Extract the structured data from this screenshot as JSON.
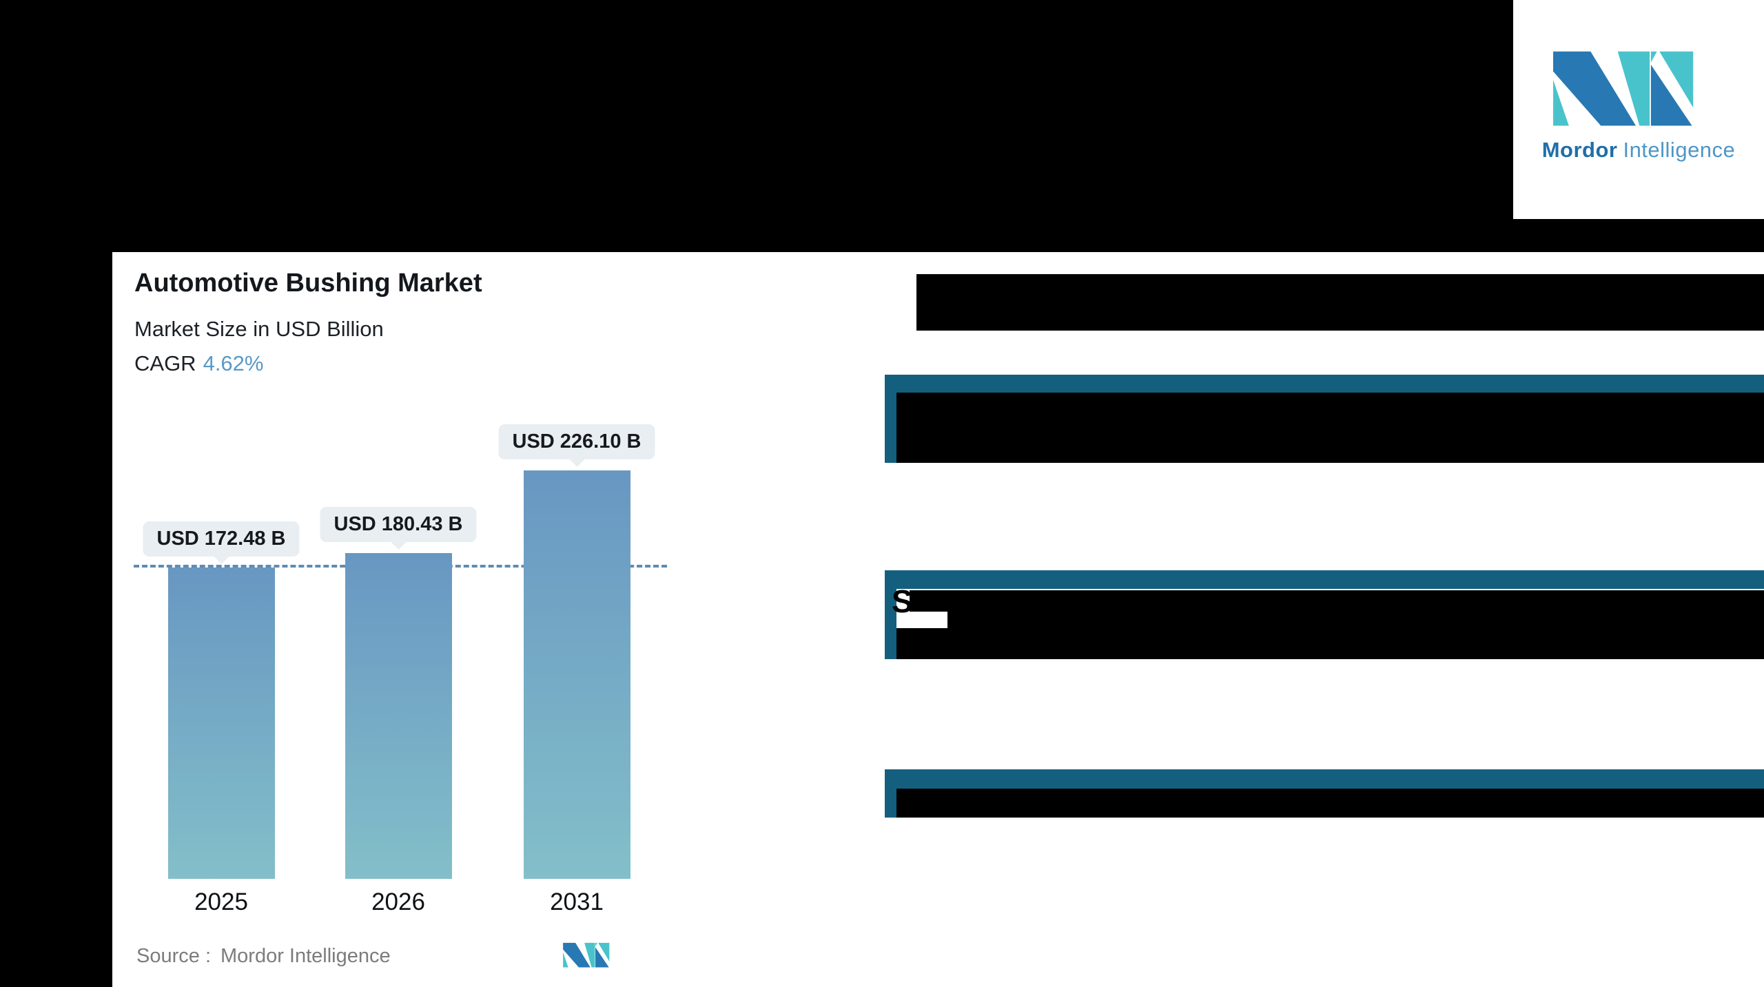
{
  "brand": {
    "name_bold": "Mordor",
    "name_light": "Intelligence"
  },
  "chart": {
    "title": "Automotive Bushing Market",
    "subtitle": "Market Size in USD Billion",
    "cagr_label": "CAGR",
    "cagr_value": "4.62%",
    "source_label": "Source :",
    "source_value": "Mordor Intelligence"
  },
  "chart_data": {
    "type": "bar",
    "title": "Automotive Bushing Market",
    "ylabel": "Market Size in USD Billion",
    "categories": [
      "2025",
      "2026",
      "2031"
    ],
    "values": [
      172.48,
      180.43,
      226.1
    ],
    "value_labels": [
      "USD 172.48 B",
      "USD 180.43 B",
      "USD 226.10 B"
    ],
    "cagr_percent": 4.62,
    "reference_line": {
      "value": 172.48,
      "style": "dashed"
    },
    "grid": false,
    "legend": "none",
    "bar_color_top": "#6897C2",
    "bar_color_bottom": "#83BFC9"
  },
  "redacted_sections": {
    "section2_visible_char": "S"
  },
  "colors": {
    "section_header_blue": "#155F7E",
    "cagr_blue": "#5999C8",
    "dashed_line": "#5E8CB4",
    "bubble_bg": "#E8EEF1",
    "logo_blue": "#2878B3",
    "logo_teal": "#49C3CB",
    "source_gray": "#7C7C7C"
  }
}
